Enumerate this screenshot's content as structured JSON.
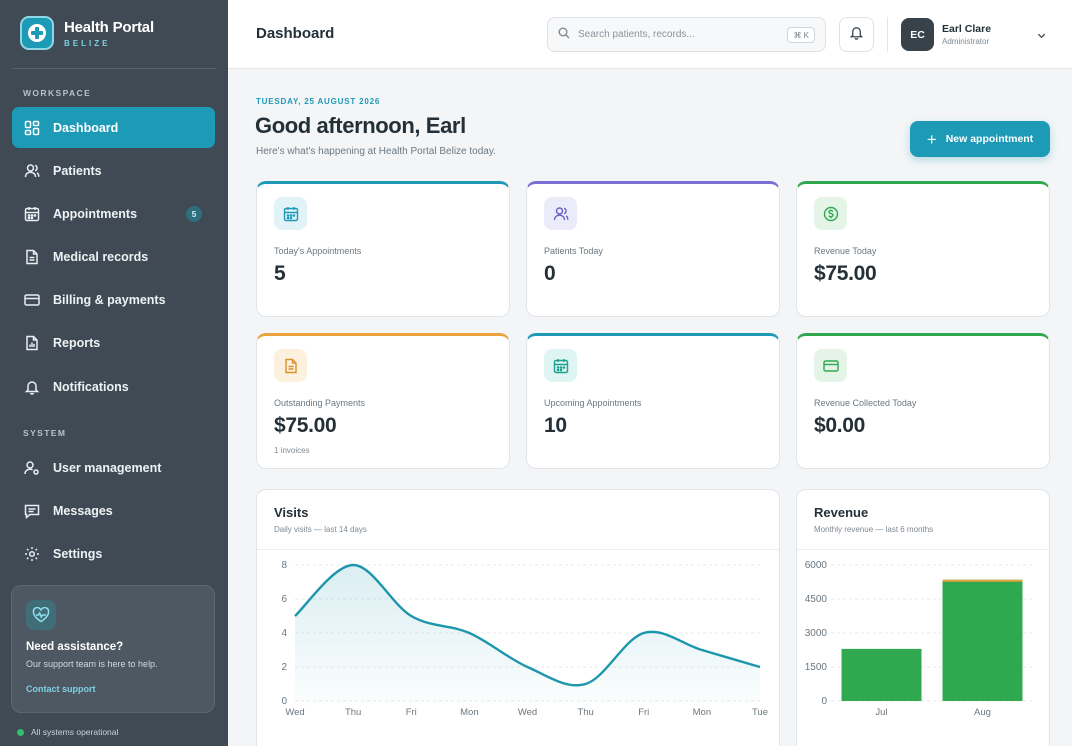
{
  "brand": {
    "name": "Health Portal",
    "sub": "BELIZE"
  },
  "sidebar": {
    "workspace_label": "WORKSPACE",
    "system_label": "SYSTEM",
    "items": [
      {
        "label": "Dashboard",
        "icon": "grid-icon"
      },
      {
        "label": "Patients",
        "icon": "user-icon"
      },
      {
        "label": "Appointments",
        "icon": "calendar-icon",
        "badge": "5"
      },
      {
        "label": "Medical records",
        "icon": "document-icon"
      },
      {
        "label": "Billing & payments",
        "icon": "credit-card-icon"
      },
      {
        "label": "Reports",
        "icon": "report-icon"
      },
      {
        "label": "Notifications",
        "icon": "bell-icon"
      }
    ],
    "system_items": [
      {
        "label": "User management",
        "icon": "user-gear-icon"
      },
      {
        "label": "Messages",
        "icon": "message-icon"
      },
      {
        "label": "Settings",
        "icon": "gear-icon"
      }
    ],
    "help": {
      "title": "Need assistance?",
      "text": "Our support team is here to help.",
      "link": "Contact support"
    },
    "status": "All systems operational"
  },
  "header": {
    "title": "Dashboard",
    "search_placeholder": "Search patients, records...",
    "shortcut": "⌘ K",
    "user": {
      "initials": "EC",
      "name": "Earl Clare",
      "role": "Administrator"
    }
  },
  "main": {
    "date": "TUESDAY, 25 AUGUST 2026",
    "greeting": "Good afternoon, Earl",
    "subtitle": "Here's what's happening at Health Portal Belize today.",
    "new_button": "New appointment",
    "accent": "#1c9ab6",
    "stats": [
      {
        "label": "Today's Appointments",
        "value": "5",
        "color": "#1c9ab6"
      },
      {
        "label": "Patients Today",
        "value": "0",
        "color": "#7b6fd6"
      },
      {
        "label": "Revenue Today",
        "value": "$75.00",
        "color": "#2fa84f"
      },
      {
        "label": "Outstanding Payments",
        "value": "$75.00",
        "note": "1 invoices",
        "color": "#e8a33a"
      },
      {
        "label": "Upcoming Appointments",
        "value": "10",
        "color": "#1c9ab6"
      },
      {
        "label": "Revenue Collected Today",
        "value": "$0.00",
        "color": "#2fa84f"
      }
    ]
  },
  "visits": {
    "title": "Visits",
    "subtitle": "Daily visits — last 14 days"
  },
  "revenue": {
    "title": "Revenue",
    "subtitle": "Monthly revenue — last 6 months"
  },
  "chart_data": [
    {
      "type": "line",
      "categories": [
        "Wed",
        "Thu",
        "Fri",
        "Mon",
        "Wed",
        "Thu",
        "Fri",
        "Mon",
        "Tue"
      ],
      "values": [
        5,
        8,
        5,
        4,
        2,
        1,
        4,
        3,
        2
      ],
      "ylim": [
        0,
        8
      ],
      "yticks": [
        "0",
        "2",
        "4",
        "6",
        "8"
      ],
      "color": "#1c96ac"
    },
    {
      "type": "bar",
      "categories": [
        "Jul",
        "Aug"
      ],
      "values": [
        2300,
        5350
      ],
      "ylim": [
        0,
        6000
      ],
      "yticks": [
        "0",
        "1500",
        "3000",
        "4500",
        "6000"
      ],
      "color": "#2fa84f",
      "cap_color": "#e8a33a"
    }
  ]
}
